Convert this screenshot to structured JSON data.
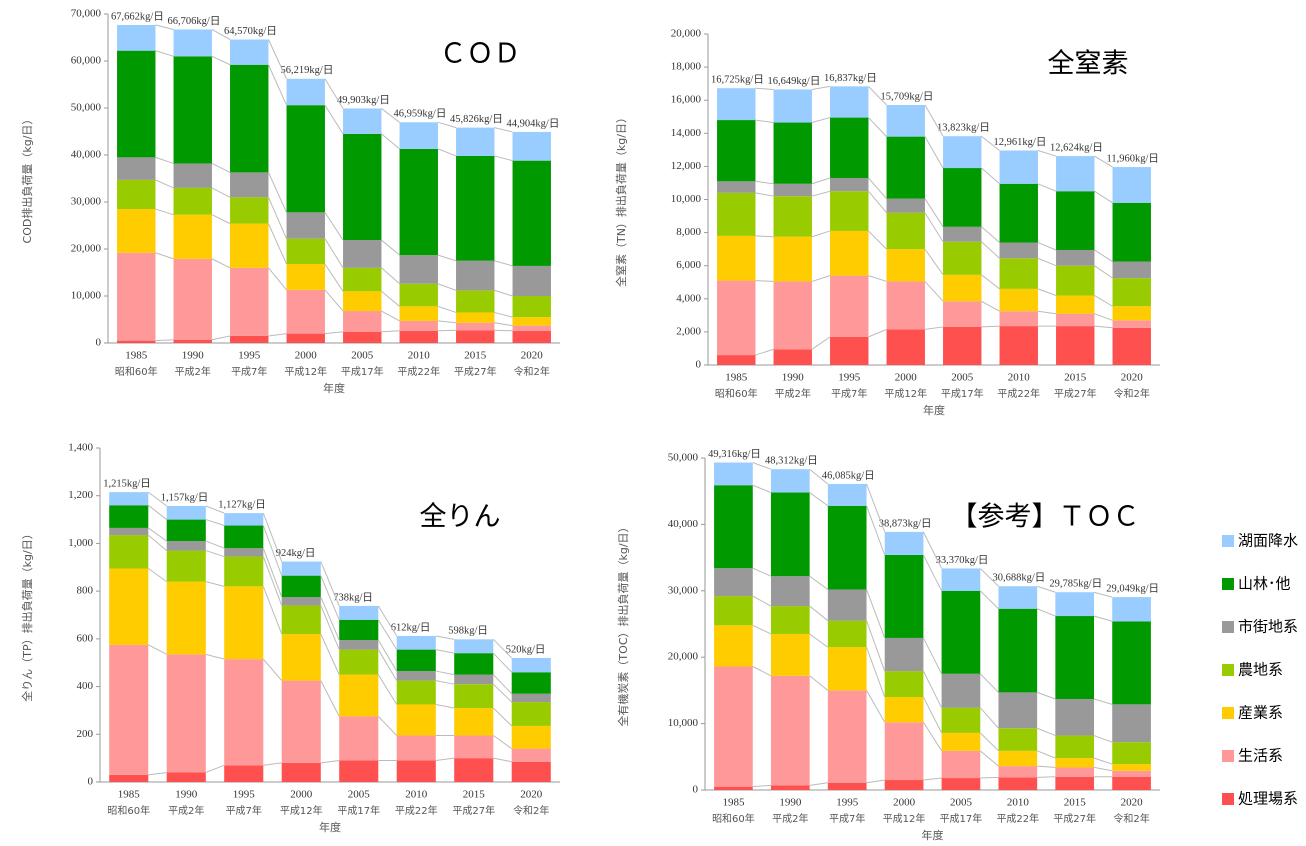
{
  "legend": {
    "items": [
      {
        "name": "湖面降水",
        "color": "#99ccff"
      },
      {
        "name": "山林･他",
        "color": "#009900"
      },
      {
        "name": "市街地系",
        "color": "#999999"
      },
      {
        "name": "農地系",
        "color": "#99cc00"
      },
      {
        "name": "産業系",
        "color": "#ffcc00"
      },
      {
        "name": "生活系",
        "color": "#ff9999"
      },
      {
        "name": "処理場系",
        "color": "#ff5050"
      }
    ]
  },
  "chart_data": [
    {
      "type": "bar",
      "stacked": true,
      "title": "ＣＯＤ",
      "y_label": "COD排出負荷量（kg/日）",
      "x_label": "年度",
      "categories": [
        "1985",
        "1990",
        "1995",
        "2000",
        "2005",
        "2010",
        "2015",
        "2020"
      ],
      "sub_categories": [
        "昭和60年",
        "平成2年",
        "平成7年",
        "平成12年",
        "平成17年",
        "平成22年",
        "平成27年",
        "令和2年"
      ],
      "series": [
        {
          "values": [
            5462,
            5706,
            5370,
            5619,
            5403,
            5659,
            6026,
            6104
          ]
        },
        {
          "values": [
            22700,
            22800,
            22900,
            22800,
            22600,
            22600,
            22300,
            22400
          ]
        },
        {
          "values": [
            4800,
            5200,
            5300,
            5600,
            5900,
            6100,
            6300,
            6400
          ]
        },
        {
          "values": [
            6200,
            5700,
            5600,
            5400,
            5000,
            4800,
            4700,
            4500
          ]
        },
        {
          "values": [
            9300,
            9400,
            9400,
            5500,
            4200,
            3100,
            2200,
            1800
          ]
        },
        {
          "values": [
            18700,
            17200,
            14500,
            9300,
            4400,
            2100,
            1600,
            1100
          ]
        },
        {
          "values": [
            500,
            700,
            1500,
            2000,
            2400,
            2600,
            2700,
            2600
          ]
        }
      ],
      "totals": [
        67662,
        66706,
        64570,
        56219,
        49903,
        46959,
        45826,
        44904
      ],
      "total_labels": [
        "67,662kg/日",
        "66,706kg/日",
        "64,570kg/日",
        "56,219kg/日",
        "49,903kg/日",
        "46,959kg/日",
        "45,826kg/日",
        "44,904kg/日"
      ],
      "ylim": [
        0,
        70000
      ],
      "yticks": [
        0,
        {
          "value": 10000,
          "label": "10,000"
        },
        {
          "value": 20000,
          "label": "20,000"
        },
        {
          "value": 30000,
          "label": "30,000"
        },
        {
          "value": 40000,
          "label": "40,000"
        },
        {
          "value": 50000,
          "label": "50,000"
        },
        {
          "value": 60000,
          "label": "60,000"
        },
        {
          "value": 70000,
          "label": "70,000"
        }
      ]
    },
    {
      "type": "bar",
      "stacked": true,
      "title": "全窒素",
      "y_label": "全窒素（TN）排出負荷量（kg/日）",
      "x_label": "年度",
      "categories": [
        "1985",
        "1990",
        "1995",
        "2000",
        "2005",
        "2010",
        "2015",
        "2020"
      ],
      "sub_categories": [
        "昭和60年",
        "平成2年",
        "平成7年",
        "平成12年",
        "平成17年",
        "平成22年",
        "平成27年",
        "令和2年"
      ],
      "series": [
        {
          "values": [
            1925,
            1999,
            1887,
            1909,
            1923,
            2011,
            2124,
            2160
          ]
        },
        {
          "values": [
            3700,
            3700,
            3650,
            3750,
            3550,
            3550,
            3550,
            3550
          ]
        },
        {
          "values": [
            700,
            750,
            800,
            850,
            900,
            950,
            950,
            1000
          ]
        },
        {
          "values": [
            2600,
            2450,
            2400,
            2200,
            2000,
            1850,
            1800,
            1700
          ]
        },
        {
          "values": [
            2700,
            2700,
            2700,
            1950,
            1600,
            1350,
            1100,
            850
          ]
        },
        {
          "values": [
            4500,
            4100,
            3700,
            2900,
            1550,
            900,
            750,
            450
          ]
        },
        {
          "values": [
            600,
            950,
            1700,
            2150,
            2300,
            2350,
            2350,
            2250
          ]
        }
      ],
      "totals": [
        16725,
        16649,
        16837,
        15709,
        13823,
        12961,
        12624,
        11960
      ],
      "total_labels": [
        "16,725kg/日",
        "16,649kg/日",
        "16,837kg/日",
        "15,709kg/日",
        "13,823kg/日",
        "12,961kg/日",
        "12,624kg/日",
        "11,960kg/日"
      ],
      "ylim": [
        0,
        20000
      ],
      "yticks": [
        0,
        {
          "value": 2000,
          "label": "2,000"
        },
        {
          "value": 4000,
          "label": "4,000"
        },
        {
          "value": 6000,
          "label": "6,000"
        },
        {
          "value": 8000,
          "label": "8,000"
        },
        {
          "value": 10000,
          "label": "10,000"
        },
        {
          "value": 12000,
          "label": "12,000"
        },
        {
          "value": 14000,
          "label": "14,000"
        },
        {
          "value": 16000,
          "label": "16,000"
        },
        {
          "value": 18000,
          "label": "18,000"
        },
        {
          "value": 20000,
          "label": "20,000"
        }
      ]
    },
    {
      "type": "bar",
      "stacked": true,
      "title": "全りん",
      "y_label": "全りん（TP）排出負荷量（kg/日）",
      "x_label": "年度",
      "categories": [
        "1985",
        "1990",
        "1995",
        "2000",
        "2005",
        "2010",
        "2015",
        "2020"
      ],
      "sub_categories": [
        "昭和60年",
        "平成2年",
        "平成7年",
        "平成12年",
        "平成17年",
        "平成22年",
        "平成27年",
        "令和2年"
      ],
      "series": [
        {
          "values": [
            55,
            57,
            52,
            59,
            58,
            57,
            58,
            60
          ]
        },
        {
          "values": [
            95,
            90,
            95,
            90,
            85,
            90,
            90,
            90
          ]
        },
        {
          "values": [
            30,
            40,
            35,
            35,
            40,
            40,
            40,
            35
          ]
        },
        {
          "values": [
            140,
            130,
            125,
            120,
            105,
            100,
            100,
            100
          ]
        },
        {
          "values": [
            320,
            305,
            305,
            195,
            175,
            130,
            115,
            95
          ]
        },
        {
          "values": [
            545,
            495,
            445,
            345,
            185,
            105,
            95,
            55
          ]
        },
        {
          "values": [
            30,
            40,
            70,
            80,
            90,
            90,
            100,
            85
          ]
        }
      ],
      "totals": [
        1215,
        1157,
        1127,
        924,
        738,
        612,
        598,
        520
      ],
      "total_labels": [
        "1,215kg/日",
        "1,157kg/日",
        "1,127kg/日",
        "924kg/日",
        "738kg/日",
        "612kg/日",
        "598kg/日",
        "520kg/日"
      ],
      "ylim": [
        0,
        1400
      ],
      "yticks": [
        0,
        200,
        400,
        600,
        800,
        {
          "value": 1000,
          "label": "1,000"
        },
        {
          "value": 1200,
          "label": "1,200"
        },
        {
          "value": 1400,
          "label": "1,400"
        }
      ]
    },
    {
      "type": "bar",
      "stacked": true,
      "title": "【参考】ＴＯＣ",
      "y_label": "全有機炭素（TOC）排出負荷量（kg/日）",
      "x_label": "年度",
      "categories": [
        "1985",
        "1990",
        "1995",
        "2000",
        "2005",
        "2010",
        "2015",
        "2020"
      ],
      "sub_categories": [
        "昭和60年",
        "平成2年",
        "平成7年",
        "平成12年",
        "平成17年",
        "平成22年",
        "平成27年",
        "令和2年"
      ],
      "series": [
        {
          "values": [
            3416,
            3512,
            3285,
            3473,
            3370,
            3388,
            3585,
            3649
          ]
        },
        {
          "values": [
            12500,
            12600,
            12600,
            12500,
            12500,
            12600,
            12500,
            12500
          ]
        },
        {
          "values": [
            4200,
            4500,
            4700,
            5000,
            5100,
            5400,
            5500,
            5700
          ]
        },
        {
          "values": [
            4400,
            4200,
            4000,
            3900,
            3800,
            3400,
            3400,
            3300
          ]
        },
        {
          "values": [
            6200,
            6300,
            6500,
            3800,
            2700,
            2300,
            1400,
            1000
          ]
        },
        {
          "values": [
            18100,
            16500,
            13900,
            8700,
            4100,
            1700,
            1400,
            900
          ]
        },
        {
          "values": [
            500,
            700,
            1100,
            1500,
            1800,
            1900,
            2000,
            2000
          ]
        }
      ],
      "totals": [
        49316,
        48312,
        46085,
        38873,
        33370,
        30688,
        29785,
        29049
      ],
      "total_labels": [
        "49,316kg/日",
        "48,312kg/日",
        "46,085kg/日",
        "38,873kg/日",
        "33,370kg/日",
        "30,688kg/日",
        "29,785kg/日",
        "29,049kg/日"
      ],
      "ylim": [
        0,
        50000
      ],
      "yticks": [
        0,
        {
          "value": 10000,
          "label": "10,000"
        },
        {
          "value": 20000,
          "label": "20,000"
        },
        {
          "value": 30000,
          "label": "30,000"
        },
        {
          "value": 40000,
          "label": "40,000"
        },
        {
          "value": 50000,
          "label": "50,000"
        }
      ]
    }
  ]
}
